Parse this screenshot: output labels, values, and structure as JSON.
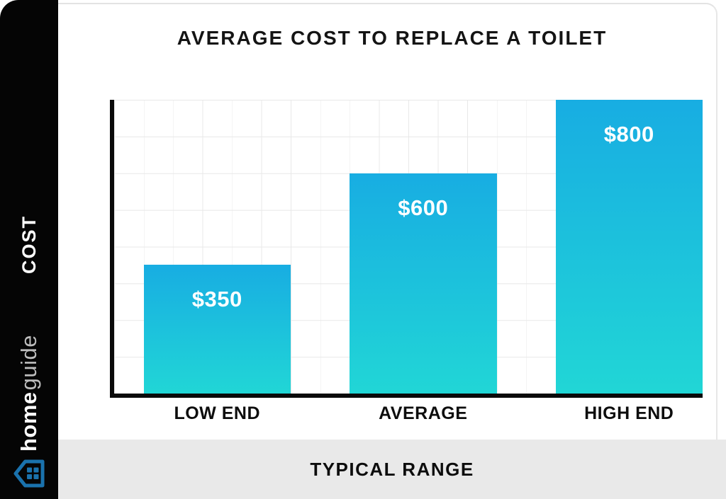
{
  "header": {
    "title": "AVERAGE COST TO REPLACE A TOILET"
  },
  "sidebar": {
    "axis_label": "COST",
    "brand": {
      "logo_home": "home",
      "logo_guide": "guide",
      "house_icon": "house-icon",
      "brand_blue": "#1a72ad"
    }
  },
  "footer": {
    "label": "TYPICAL RANGE"
  },
  "chart_data": {
    "type": "bar",
    "categories": [
      "LOW END",
      "AVERAGE",
      "HIGH END"
    ],
    "values": [
      350,
      600,
      800
    ],
    "value_labels": [
      "$350",
      "$600",
      "$800"
    ],
    "title": "AVERAGE COST TO REPLACE A TOILET",
    "xlabel": "TYPICAL RANGE",
    "ylabel": "COST",
    "ylim": [
      0,
      800
    ],
    "grid": true,
    "legend": false,
    "bar_gradient_top": "#18ade2",
    "bar_gradient_bottom": "#21d6d6"
  }
}
